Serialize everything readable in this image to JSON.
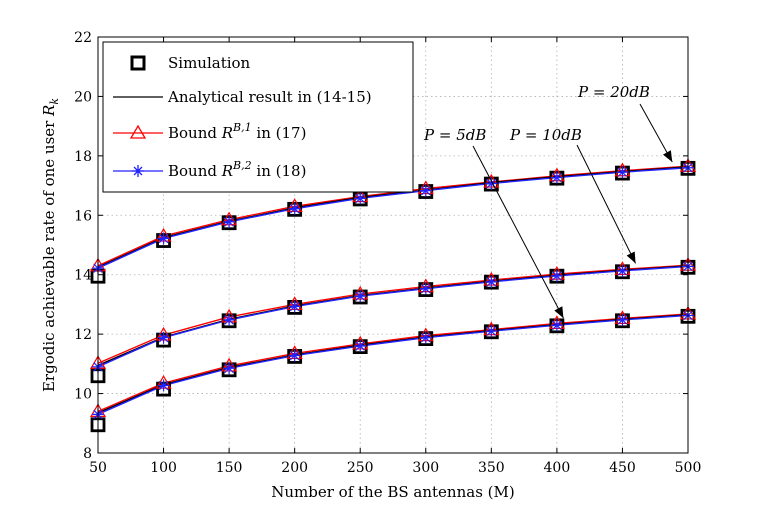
{
  "chart_data": {
    "type": "line",
    "title": "",
    "xlabel": "Number of the BS antennas (M)",
    "ylabel": "Ergodic achievable rate of one user R_k",
    "ylabel_main": "Ergodic achievable rate of one user ",
    "ylabel_var": "R",
    "ylabel_sub": "k",
    "xlim": [
      50,
      500
    ],
    "ylim": [
      8,
      22
    ],
    "xticks": [
      50,
      100,
      150,
      200,
      250,
      300,
      350,
      400,
      450,
      500
    ],
    "yticks": [
      8,
      10,
      12,
      14,
      16,
      18,
      20,
      22
    ],
    "grid": true,
    "legend_position": "top-left",
    "x": [
      50,
      100,
      150,
      200,
      250,
      300,
      350,
      400,
      450,
      500
    ],
    "groups": [
      {
        "power": "P = 20dB",
        "simulation": [
          13.95,
          15.15,
          15.75,
          16.2,
          16.55,
          16.8,
          17.05,
          17.25,
          17.42,
          17.58
        ],
        "analytical": [
          14.25,
          15.25,
          15.8,
          16.25,
          16.6,
          16.85,
          17.1,
          17.3,
          17.47,
          17.63
        ],
        "bound_1": [
          14.3,
          15.3,
          15.85,
          16.3,
          16.63,
          16.9,
          17.12,
          17.33,
          17.5,
          17.65
        ],
        "bound_2": [
          14.22,
          15.22,
          15.78,
          16.22,
          16.57,
          16.83,
          17.07,
          17.27,
          17.45,
          17.6
        ]
      },
      {
        "power": "P = 10dB",
        "simulation": [
          10.6,
          11.8,
          12.45,
          12.9,
          13.25,
          13.5,
          13.75,
          13.95,
          14.1,
          14.25
        ],
        "analytical": [
          10.95,
          11.9,
          12.5,
          12.95,
          13.3,
          13.55,
          13.78,
          13.98,
          14.15,
          14.3
        ],
        "bound_1": [
          11.02,
          11.97,
          12.58,
          13.0,
          13.35,
          13.6,
          13.82,
          14.02,
          14.18,
          14.32
        ],
        "bound_2": [
          10.9,
          11.88,
          12.48,
          12.93,
          13.28,
          13.53,
          13.76,
          13.96,
          14.13,
          14.28
        ]
      },
      {
        "power": "P = 5dB",
        "simulation": [
          8.95,
          10.15,
          10.8,
          11.25,
          11.58,
          11.85,
          12.08,
          12.28,
          12.45,
          12.6
        ],
        "analytical": [
          9.35,
          10.3,
          10.88,
          11.3,
          11.63,
          11.9,
          12.12,
          12.32,
          12.5,
          12.65
        ],
        "bound_1": [
          9.4,
          10.35,
          10.93,
          11.35,
          11.67,
          11.95,
          12.15,
          12.36,
          12.53,
          12.68
        ],
        "bound_2": [
          9.3,
          10.27,
          10.85,
          11.28,
          11.6,
          11.88,
          12.1,
          12.3,
          12.48,
          12.63
        ]
      }
    ],
    "legend": [
      {
        "key": "simulation",
        "label": "Simulation"
      },
      {
        "key": "analytical",
        "label": "Analytical result in (14-15)"
      },
      {
        "key": "bound_1",
        "label_pre": "Bound ",
        "label_var": "R",
        "label_sup": "B,1",
        "label_post": " in (17)"
      },
      {
        "key": "bound_2",
        "label_pre": "Bound ",
        "label_var": "R",
        "label_sup": "B,2",
        "label_post": " in (18)"
      }
    ],
    "annotations": [
      {
        "label": "P = 20dB",
        "target_x": 488,
        "target_group": 0
      },
      {
        "label": "P = 10dB",
        "target_x": 460,
        "target_group": 1
      },
      {
        "label": "P = 5dB",
        "target_x": 405,
        "target_group": 2
      }
    ]
  },
  "colors": {
    "simulation": "#000000",
    "analytical": "#000000",
    "bound_1": "#ff0000",
    "bound_2": "#2222ff",
    "grid": "#b0b0b0"
  }
}
